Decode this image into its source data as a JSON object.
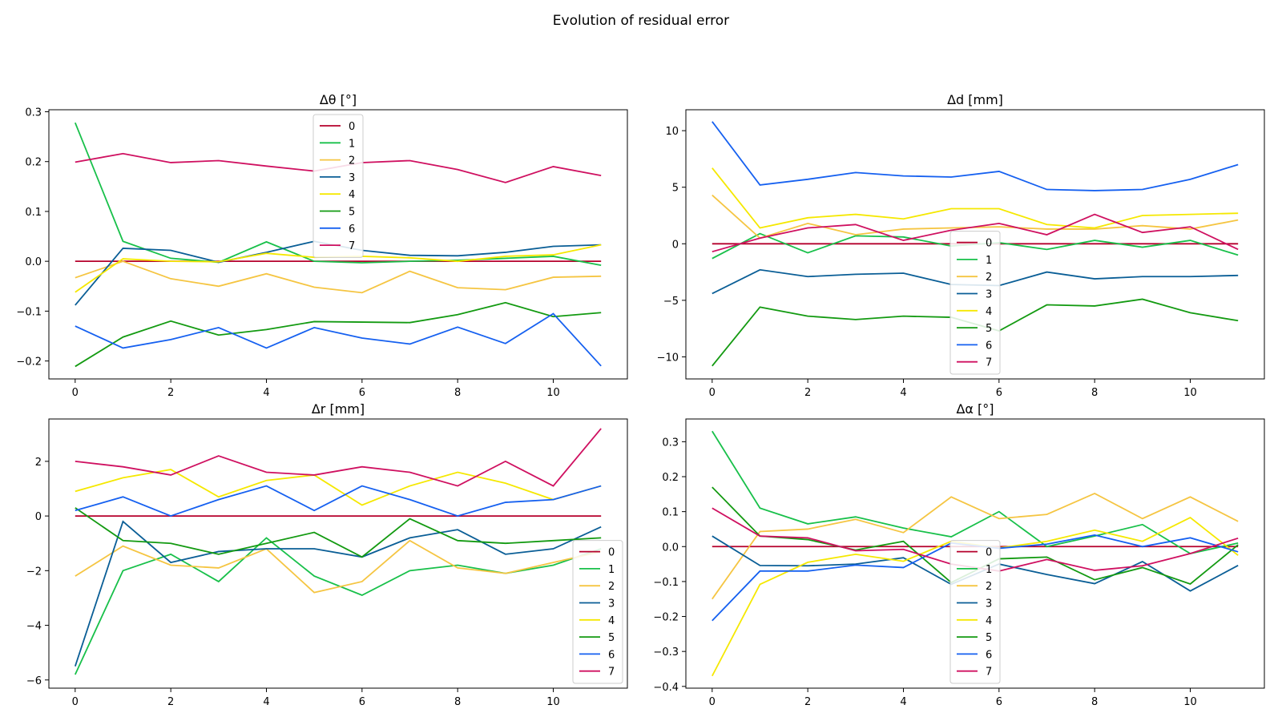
{
  "figure": {
    "title": "Evolution of residual error"
  },
  "colors": [
    "#b5002c",
    "#18c04a",
    "#f5c542",
    "#0a5e96",
    "#f5e800",
    "#139a11",
    "#1560f0",
    "#cf1060"
  ],
  "chart_data": [
    {
      "type": "line",
      "title": "Δθ [°]",
      "xlabel": "",
      "ylabel": "",
      "x": [
        0,
        1,
        2,
        3,
        4,
        5,
        6,
        7,
        8,
        9,
        10,
        11
      ],
      "xlim": [
        -0.55,
        11.55
      ],
      "ylim": [
        -0.236,
        0.304
      ],
      "xticks": [
        0,
        2,
        4,
        6,
        8,
        10
      ],
      "yticks": [
        -0.2,
        -0.1,
        0.0,
        0.1,
        0.2,
        0.3
      ],
      "ytick_labels": [
        "−0.2",
        "−0.1",
        "0.0",
        "0.1",
        "0.2",
        "0.3"
      ],
      "legend": "upper-center",
      "series": [
        {
          "name": "0",
          "values": [
            0,
            0,
            0,
            0,
            0,
            0,
            0,
            0,
            0,
            0,
            0,
            0
          ]
        },
        {
          "name": "1",
          "values": [
            0.278,
            0.04,
            0.006,
            -0.002,
            0.039,
            0.0,
            -0.003,
            0.0,
            0.002,
            0.006,
            0.01,
            -0.008
          ]
        },
        {
          "name": "2",
          "values": [
            -0.033,
            0.0,
            -0.035,
            -0.05,
            -0.025,
            -0.052,
            -0.063,
            -0.02,
            -0.053,
            -0.057,
            -0.032,
            -0.03
          ]
        },
        {
          "name": "3",
          "values": [
            -0.088,
            0.026,
            0.022,
            -0.002,
            0.018,
            0.04,
            0.022,
            0.012,
            0.011,
            0.018,
            0.03,
            0.033
          ]
        },
        {
          "name": "4",
          "values": [
            -0.062,
            0.005,
            0.0,
            -0.001,
            0.016,
            0.008,
            0.01,
            0.007,
            0.0,
            0.01,
            0.013,
            0.033
          ]
        },
        {
          "name": "5",
          "values": [
            -0.211,
            -0.152,
            -0.12,
            -0.148,
            -0.137,
            -0.121,
            -0.122,
            -0.123,
            -0.107,
            -0.083,
            -0.111,
            -0.103
          ]
        },
        {
          "name": "6",
          "values": [
            -0.13,
            -0.174,
            -0.157,
            -0.133,
            -0.174,
            -0.133,
            -0.154,
            -0.166,
            -0.132,
            -0.165,
            -0.105,
            -0.21
          ]
        },
        {
          "name": "7",
          "values": [
            0.199,
            0.216,
            0.198,
            0.202,
            0.191,
            0.181,
            0.198,
            0.202,
            0.184,
            0.158,
            0.19,
            0.172
          ]
        }
      ]
    },
    {
      "type": "line",
      "title": "Δd [mm]",
      "xlabel": "",
      "ylabel": "",
      "x": [
        0,
        1,
        2,
        3,
        4,
        5,
        6,
        7,
        8,
        9,
        10,
        11
      ],
      "xlim": [
        -0.55,
        11.55
      ],
      "ylim": [
        -11.95,
        11.85
      ],
      "xticks": [
        0,
        2,
        4,
        6,
        8,
        10
      ],
      "yticks": [
        -10,
        -5,
        0,
        5,
        10
      ],
      "ytick_labels": [
        "−10",
        "−5",
        "0",
        "5",
        "10"
      ],
      "legend": "lower-center",
      "series": [
        {
          "name": "0",
          "values": [
            0,
            0,
            0,
            0,
            0,
            0,
            0,
            0,
            0,
            0,
            0,
            0
          ]
        },
        {
          "name": "1",
          "values": [
            -1.3,
            0.9,
            -0.8,
            0.7,
            0.6,
            -0.2,
            0.1,
            -0.5,
            0.3,
            -0.3,
            0.3,
            -1.0
          ]
        },
        {
          "name": "2",
          "values": [
            4.3,
            0.5,
            1.8,
            0.8,
            1.3,
            1.4,
            1.5,
            1.3,
            1.3,
            1.6,
            1.3,
            2.1
          ]
        },
        {
          "name": "3",
          "values": [
            -4.4,
            -2.3,
            -2.9,
            -2.7,
            -2.6,
            -3.6,
            -3.7,
            -2.5,
            -3.1,
            -2.9,
            -2.9,
            -2.8
          ]
        },
        {
          "name": "4",
          "values": [
            6.7,
            1.4,
            2.3,
            2.6,
            2.2,
            3.1,
            3.1,
            1.7,
            1.4,
            2.5,
            2.6,
            2.7
          ]
        },
        {
          "name": "5",
          "values": [
            -10.8,
            -5.6,
            -6.4,
            -6.7,
            -6.4,
            -6.5,
            -7.7,
            -5.4,
            -5.5,
            -4.9,
            -6.1,
            -6.8
          ]
        },
        {
          "name": "6",
          "values": [
            10.8,
            5.2,
            5.7,
            6.3,
            6.0,
            5.9,
            6.4,
            4.8,
            4.7,
            4.8,
            5.7,
            7.0
          ]
        },
        {
          "name": "7",
          "values": [
            -0.7,
            0.5,
            1.4,
            1.7,
            0.3,
            1.2,
            1.8,
            0.8,
            2.6,
            1.0,
            1.5,
            -0.5
          ]
        }
      ]
    },
    {
      "type": "line",
      "title": "Δr [mm]",
      "xlabel": "",
      "ylabel": "",
      "x": [
        0,
        1,
        2,
        3,
        4,
        5,
        6,
        7,
        8,
        9,
        10,
        11
      ],
      "xlim": [
        -0.55,
        11.55
      ],
      "ylim": [
        -6.3,
        3.55
      ],
      "xticks": [
        0,
        2,
        4,
        6,
        8,
        10
      ],
      "yticks": [
        -6,
        -4,
        -2,
        0,
        2
      ],
      "ytick_labels": [
        "−6",
        "−4",
        "−2",
        "0",
        "2"
      ],
      "legend": "lower-right",
      "series": [
        {
          "name": "0",
          "values": [
            0,
            0,
            0,
            0,
            0,
            0,
            0,
            0,
            0,
            0,
            0,
            0
          ]
        },
        {
          "name": "1",
          "values": [
            -5.8,
            -2.0,
            -1.4,
            -2.4,
            -0.8,
            -2.2,
            -2.9,
            -2.0,
            -1.8,
            -2.1,
            -1.8,
            -1.2
          ]
        },
        {
          "name": "2",
          "values": [
            -2.2,
            -1.1,
            -1.8,
            -1.9,
            -1.2,
            -2.8,
            -2.4,
            -0.9,
            -1.9,
            -2.1,
            -1.7,
            -1.3
          ]
        },
        {
          "name": "3",
          "values": [
            -5.5,
            -0.2,
            -1.7,
            -1.3,
            -1.2,
            -1.2,
            -1.5,
            -0.8,
            -0.5,
            -1.4,
            -1.2,
            -0.4
          ]
        },
        {
          "name": "4",
          "values": [
            0.9,
            1.4,
            1.7,
            0.7,
            1.3,
            1.5,
            0.4,
            1.1,
            1.6,
            1.2,
            0.6,
            1.1
          ]
        },
        {
          "name": "5",
          "values": [
            0.3,
            -0.9,
            -1.0,
            -1.4,
            -1.0,
            -0.6,
            -1.5,
            -0.1,
            -0.9,
            -1.0,
            -0.9,
            -0.8
          ]
        },
        {
          "name": "6",
          "values": [
            0.2,
            0.7,
            0.0,
            0.6,
            1.1,
            0.2,
            1.1,
            0.6,
            0.0,
            0.5,
            0.6,
            1.1
          ]
        },
        {
          "name": "7",
          "values": [
            2.0,
            1.8,
            1.5,
            2.2,
            1.6,
            1.5,
            1.8,
            1.6,
            1.1,
            2.0,
            1.1,
            3.2
          ]
        }
      ]
    },
    {
      "type": "line",
      "title": "Δα [°]",
      "xlabel": "",
      "ylabel": "",
      "x": [
        0,
        1,
        2,
        3,
        4,
        5,
        6,
        7,
        8,
        9,
        10,
        11
      ],
      "xlim": [
        -0.55,
        11.55
      ],
      "ylim": [
        -0.405,
        0.365
      ],
      "xticks": [
        0,
        2,
        4,
        6,
        8,
        10
      ],
      "yticks": [
        -0.4,
        -0.3,
        -0.2,
        -0.1,
        0.0,
        0.1,
        0.2,
        0.3
      ],
      "ytick_labels": [
        "−0.4",
        "−0.3",
        "−0.2",
        "−0.1",
        "0.0",
        "0.1",
        "0.2",
        "0.3"
      ],
      "legend": "lower-center",
      "series": [
        {
          "name": "0",
          "values": [
            0,
            0,
            0,
            0,
            0,
            0,
            0,
            0,
            0,
            0,
            0,
            0
          ]
        },
        {
          "name": "1",
          "values": [
            0.33,
            0.11,
            0.065,
            0.085,
            0.053,
            0.028,
            0.1,
            0.0,
            0.03,
            0.063,
            -0.02,
            0.01
          ]
        },
        {
          "name": "2",
          "values": [
            -0.15,
            0.043,
            0.05,
            0.078,
            0.04,
            0.142,
            0.08,
            0.092,
            0.152,
            0.08,
            0.142,
            0.072
          ]
        },
        {
          "name": "3",
          "values": [
            0.03,
            -0.054,
            -0.055,
            -0.05,
            -0.032,
            -0.108,
            -0.05,
            -0.08,
            -0.106,
            -0.043,
            -0.127,
            -0.054
          ]
        },
        {
          "name": "4",
          "values": [
            -0.37,
            -0.108,
            -0.045,
            -0.022,
            -0.042,
            0.015,
            -0.004,
            0.015,
            0.047,
            0.015,
            0.083,
            -0.025
          ]
        },
        {
          "name": "5",
          "values": [
            0.17,
            0.03,
            0.02,
            -0.01,
            0.015,
            -0.103,
            -0.035,
            -0.03,
            -0.095,
            -0.06,
            -0.107,
            0.005
          ]
        },
        {
          "name": "6",
          "values": [
            -0.212,
            -0.07,
            -0.07,
            -0.053,
            -0.06,
            0.01,
            -0.005,
            0.007,
            0.033,
            0.0,
            0.025,
            -0.015
          ]
        },
        {
          "name": "7",
          "values": [
            0.11,
            0.03,
            0.025,
            -0.012,
            -0.008,
            -0.05,
            -0.07,
            -0.037,
            -0.068,
            -0.055,
            -0.02,
            0.024
          ]
        }
      ]
    }
  ]
}
